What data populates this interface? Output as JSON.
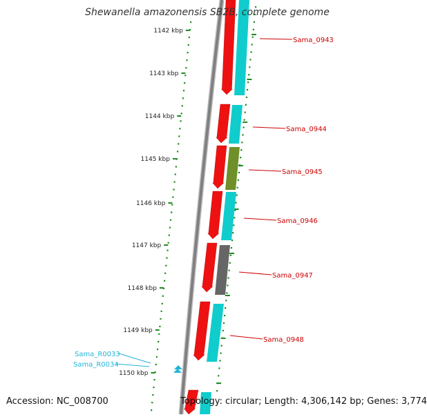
{
  "title": "Shewanella amazonensis SB2B, complete genome",
  "accession": "Accession: NC_008700",
  "topology": "Topology: circular; Length: 4,306,142 bp; Genes: 3,774",
  "colors": {
    "tick_green": "#1e8a1e",
    "gene_red": "#ee1111",
    "gene_cyan": "#11cccc",
    "gene_olive": "#6f8f2a",
    "gene_gray": "#666666",
    "label_red": "#cc0000",
    "label_cyan": "#22b4d8",
    "backbone": "#808080"
  },
  "kbp_labels": [
    "1142 kbp",
    "1143 kbp",
    "1144 kbp",
    "1145 kbp",
    "1146 kbp",
    "1147 kbp",
    "1148 kbp",
    "1149 kbp",
    "1150 kbp"
  ],
  "gene_labels": [
    "Sama_0943",
    "Sama_0944",
    "Sama_0945",
    "Sama_0946",
    "Sama_0947",
    "Sama_0948"
  ],
  "rna_labels": [
    "Sama_R0033",
    "Sama_R0034"
  ]
}
